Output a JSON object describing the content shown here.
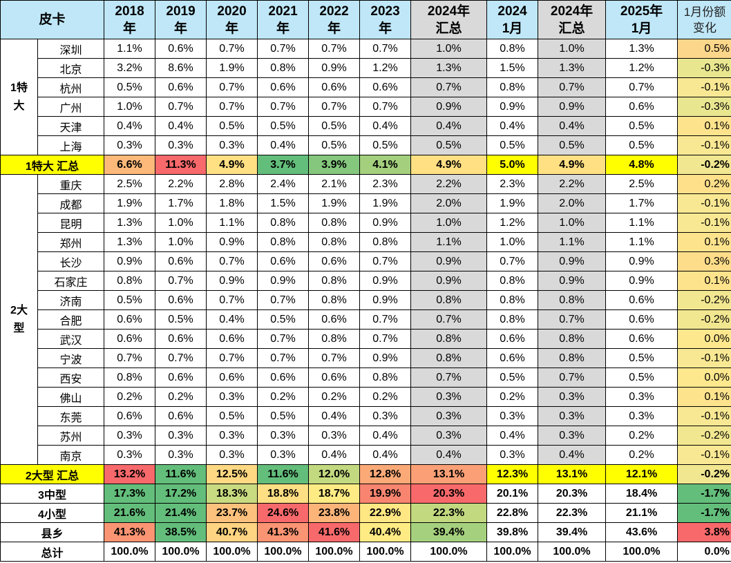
{
  "header": {
    "corner": "皮卡",
    "columns": [
      {
        "l1": "2018",
        "l2": "年",
        "bg": "#bfe7f7"
      },
      {
        "l1": "2019",
        "l2": "年",
        "bg": "#bfe7f7"
      },
      {
        "l1": "2020",
        "l2": "年",
        "bg": "#bfe7f7"
      },
      {
        "l1": "2021",
        "l2": "年",
        "bg": "#bfe7f7"
      },
      {
        "l1": "2022",
        "l2": "年",
        "bg": "#bfe7f7"
      },
      {
        "l1": "2023",
        "l2": "年",
        "bg": "#bfe7f7"
      },
      {
        "l1": "2024年",
        "l2": "汇总",
        "bg": "#d9d9d9"
      },
      {
        "l1": "2024",
        "l2": "1月",
        "bg": "#bfe7f7"
      },
      {
        "l1": "2024年",
        "l2": "汇总",
        "bg": "#d9d9d9"
      },
      {
        "l1": "2025年",
        "l2": "1月",
        "bg": "#bfe7f7"
      }
    ],
    "change": {
      "l1": "1月份额",
      "l2": "变化"
    }
  },
  "groups": [
    {
      "label": "1特\n大",
      "rows": [
        {
          "city": "深圳",
          "values": [
            "1.1%",
            "0.6%",
            "0.7%",
            "0.7%",
            "0.7%",
            "0.7%",
            "1.0%",
            "0.8%",
            "1.0%",
            "1.3%"
          ],
          "change": "0.5%",
          "change_bg": "#fcd68a"
        },
        {
          "city": "北京",
          "values": [
            "3.2%",
            "8.6%",
            "1.9%",
            "0.8%",
            "0.9%",
            "1.2%",
            "1.3%",
            "1.5%",
            "1.3%",
            "1.2%"
          ],
          "change": "-0.3%",
          "change_bg": "#e9e690"
        },
        {
          "city": "杭州",
          "values": [
            "0.5%",
            "0.6%",
            "0.7%",
            "0.6%",
            "0.6%",
            "0.6%",
            "0.7%",
            "0.8%",
            "0.7%",
            "0.7%"
          ],
          "change": "-0.1%",
          "change_bg": "#f9e893"
        },
        {
          "city": "广州",
          "values": [
            "1.0%",
            "0.7%",
            "0.7%",
            "0.7%",
            "0.7%",
            "0.7%",
            "0.9%",
            "0.9%",
            "0.9%",
            "0.6%"
          ],
          "change": "-0.3%",
          "change_bg": "#e9e690"
        },
        {
          "city": "天津",
          "values": [
            "0.4%",
            "0.4%",
            "0.5%",
            "0.5%",
            "0.5%",
            "0.4%",
            "0.4%",
            "0.4%",
            "0.4%",
            "0.5%"
          ],
          "change": "0.1%",
          "change_bg": "#fee38d"
        },
        {
          "city": "上海",
          "values": [
            "0.3%",
            "0.3%",
            "0.3%",
            "0.4%",
            "0.5%",
            "0.5%",
            "0.5%",
            "0.5%",
            "0.5%",
            "0.5%"
          ],
          "change": "-0.1%",
          "change_bg": "#f9e893"
        }
      ]
    },
    {
      "label": "2大\n型",
      "rows": [
        {
          "city": "重庆",
          "values": [
            "2.5%",
            "2.2%",
            "2.8%",
            "2.4%",
            "2.1%",
            "2.3%",
            "2.2%",
            "2.3%",
            "2.2%",
            "2.5%"
          ],
          "change": "0.2%",
          "change_bg": "#fee08b"
        },
        {
          "city": "成都",
          "values": [
            "1.9%",
            "1.7%",
            "1.8%",
            "1.5%",
            "1.9%",
            "1.9%",
            "2.0%",
            "1.9%",
            "2.0%",
            "1.7%"
          ],
          "change": "-0.1%",
          "change_bg": "#f9e893"
        },
        {
          "city": "昆明",
          "values": [
            "1.3%",
            "1.0%",
            "1.1%",
            "0.8%",
            "0.8%",
            "0.9%",
            "1.0%",
            "1.2%",
            "1.0%",
            "1.1%"
          ],
          "change": "-0.1%",
          "change_bg": "#f9e893"
        },
        {
          "city": "郑州",
          "values": [
            "1.3%",
            "1.0%",
            "0.9%",
            "0.8%",
            "0.8%",
            "0.8%",
            "1.1%",
            "1.0%",
            "1.1%",
            "1.1%"
          ],
          "change": "0.1%",
          "change_bg": "#fee38d"
        },
        {
          "city": "长沙",
          "values": [
            "0.9%",
            "0.6%",
            "0.7%",
            "0.6%",
            "0.6%",
            "0.7%",
            "0.9%",
            "0.7%",
            "0.9%",
            "0.9%"
          ],
          "change": "0.3%",
          "change_bg": "#fddd89"
        },
        {
          "city": "石家庄",
          "values": [
            "0.8%",
            "0.7%",
            "0.9%",
            "0.9%",
            "0.8%",
            "0.9%",
            "0.9%",
            "0.8%",
            "0.9%",
            "0.9%"
          ],
          "change": "0.1%",
          "change_bg": "#fee38d"
        },
        {
          "city": "济南",
          "values": [
            "0.5%",
            "0.6%",
            "0.7%",
            "0.7%",
            "0.8%",
            "0.9%",
            "0.8%",
            "0.8%",
            "0.8%",
            "0.6%"
          ],
          "change": "-0.2%",
          "change_bg": "#f2e791"
        },
        {
          "city": "合肥",
          "values": [
            "0.6%",
            "0.5%",
            "0.4%",
            "0.5%",
            "0.6%",
            "0.7%",
            "0.7%",
            "0.8%",
            "0.7%",
            "0.6%"
          ],
          "change": "-0.2%",
          "change_bg": "#f2e791"
        },
        {
          "city": "武汉",
          "values": [
            "0.6%",
            "0.6%",
            "0.6%",
            "0.7%",
            "0.8%",
            "0.7%",
            "0.8%",
            "0.6%",
            "0.8%",
            "0.6%"
          ],
          "change": "0.0%",
          "change_bg": "#fee88e"
        },
        {
          "city": "宁波",
          "values": [
            "0.7%",
            "0.7%",
            "0.7%",
            "0.7%",
            "0.7%",
            "0.9%",
            "0.8%",
            "0.6%",
            "0.8%",
            "0.5%"
          ],
          "change": "-0.1%",
          "change_bg": "#f9e893"
        },
        {
          "city": "西安",
          "values": [
            "0.8%",
            "0.6%",
            "0.6%",
            "0.6%",
            "0.6%",
            "0.8%",
            "0.7%",
            "0.5%",
            "0.7%",
            "0.5%"
          ],
          "change": "0.0%",
          "change_bg": "#fee88e"
        },
        {
          "city": "佛山",
          "values": [
            "0.2%",
            "0.2%",
            "0.3%",
            "0.2%",
            "0.2%",
            "0.2%",
            "0.3%",
            "0.2%",
            "0.3%",
            "0.3%"
          ],
          "change": "0.1%",
          "change_bg": "#fee38d"
        },
        {
          "city": "东莞",
          "values": [
            "0.6%",
            "0.6%",
            "0.5%",
            "0.5%",
            "0.4%",
            "0.3%",
            "0.3%",
            "0.3%",
            "0.3%",
            "0.3%"
          ],
          "change": "-0.1%",
          "change_bg": "#f9e893"
        },
        {
          "city": "苏州",
          "values": [
            "0.3%",
            "0.3%",
            "0.3%",
            "0.3%",
            "0.3%",
            "0.4%",
            "0.3%",
            "0.4%",
            "0.3%",
            "0.2%"
          ],
          "change": "-0.2%",
          "change_bg": "#f2e791"
        },
        {
          "city": "南京",
          "values": [
            "0.3%",
            "0.3%",
            "0.3%",
            "0.3%",
            "0.4%",
            "0.4%",
            "0.4%",
            "0.3%",
            "0.4%",
            "0.2%"
          ],
          "change": "-0.1%",
          "change_bg": "#f9e893"
        }
      ]
    }
  ],
  "summaries": {
    "s1": {
      "label": "1特大 汇总",
      "label_bg": "#ffff00",
      "values": [
        "6.6%",
        "11.3%",
        "4.9%",
        "3.7%",
        "3.9%",
        "4.1%",
        "4.9%",
        "5.0%",
        "4.9%",
        "4.8%"
      ],
      "bgs": [
        "#fcb979",
        "#f8696b",
        "#ffe083",
        "#63be7b",
        "#84c77d",
        "#a4d07e",
        "#ffe083",
        "#ffff00",
        "#ffe083",
        "#ffff00"
      ],
      "change": "-0.2%",
      "change_bg": "#f2e791"
    },
    "s2": {
      "label": "2大型 汇总",
      "label_bg": "#ffff00",
      "values": [
        "13.2%",
        "11.6%",
        "12.5%",
        "11.6%",
        "12.0%",
        "12.8%",
        "13.1%",
        "12.3%",
        "13.1%",
        "12.1%"
      ],
      "bgs": [
        "#f8696b",
        "#63be7b",
        "#fed882",
        "#63be7b",
        "#c3d980",
        "#fbaa77",
        "#fba076",
        "#ffff00",
        "#ffff00",
        "#ffff00"
      ],
      "change": "-0.2%",
      "change_bg": "#f2e791"
    },
    "s3": {
      "label": "3中型",
      "values": [
        "17.3%",
        "17.2%",
        "18.3%",
        "18.8%",
        "18.7%",
        "19.9%",
        "20.3%",
        "20.1%",
        "20.3%",
        "18.4%"
      ],
      "bgs": [
        "#63be7b",
        "#63be7b",
        "#c9db81",
        "#fedf83",
        "#ffeb84",
        "#f98570",
        "#f8696b",
        "#ffffff",
        "#ffffff",
        "#ffffff"
      ],
      "change": "-1.7%",
      "change_bg": "#63be7b"
    },
    "s4": {
      "label": "4小型",
      "values": [
        "21.6%",
        "21.4%",
        "23.7%",
        "24.6%",
        "23.8%",
        "22.9%",
        "22.3%",
        "22.8%",
        "22.3%",
        "21.1%"
      ],
      "bgs": [
        "#63be7b",
        "#63be7b",
        "#fcc17c",
        "#f8696b",
        "#fcb479",
        "#ffe784",
        "#c2d980",
        "#ffffff",
        "#ffffff",
        "#ffffff"
      ],
      "change": "-1.7%",
      "change_bg": "#63be7b"
    },
    "s5": {
      "label": "县乡",
      "values": [
        "41.3%",
        "38.5%",
        "40.7%",
        "41.3%",
        "41.6%",
        "40.4%",
        "39.4%",
        "39.8%",
        "39.4%",
        "43.6%"
      ],
      "bgs": [
        "#fa9473",
        "#63be7b",
        "#fed381",
        "#fa9473",
        "#f8696b",
        "#ffeb84",
        "#a5d17e",
        "#ffffff",
        "#ffffff",
        "#ffffff"
      ],
      "change": "3.8%",
      "change_bg": "#f8696b"
    },
    "total": {
      "label": "总计",
      "values": [
        "100.0%",
        "100.0%",
        "100.0%",
        "100.0%",
        "100.0%",
        "100.0%",
        "100.0%",
        "100.0%",
        "100.0%",
        "100.0%"
      ],
      "bgs": [
        "#ffffff",
        "#ffffff",
        "#ffffff",
        "#ffffff",
        "#ffffff",
        "#ffffff",
        "#ffffff",
        "#ffffff",
        "#ffffff",
        "#ffffff"
      ],
      "change": "0.0%",
      "change_bg": "#ffffff"
    }
  },
  "colors": {
    "header_bg": "#bfe7f7",
    "highlight_col_bg": "#d9d9d9",
    "yellow": "#ffff00",
    "green": "#63be7b",
    "red": "#f8696b"
  }
}
